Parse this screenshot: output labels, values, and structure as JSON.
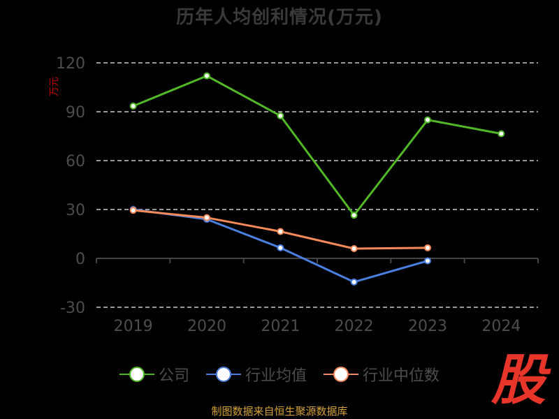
{
  "title": "历年人均创利情况(万元)",
  "source": "制图数据来自恒生聚源数据库",
  "logo_text": "股",
  "colors": {
    "background": "#000000",
    "company": "#52b828",
    "industry_avg": "#4a7fe0",
    "industry_median": "#f4895a",
    "grid": "#cccccc",
    "ylabel": "#c00000",
    "source": "#d6a23a",
    "logo": "#e8352a"
  },
  "chart_data": {
    "type": "line",
    "title": "历年人均创利情况(万元)",
    "ylabel": "万元",
    "xlabel": "",
    "categories": [
      "2019",
      "2020",
      "2021",
      "2022",
      "2023",
      "2024"
    ],
    "yticks": [
      120,
      90,
      60,
      30,
      0,
      -30
    ],
    "ylim": [
      -30,
      120
    ],
    "grid": true,
    "legend_position": "bottom",
    "series": [
      {
        "name": "公司",
        "color": "#52b828",
        "values": [
          93.5,
          112,
          87.5,
          26.5,
          85,
          76.5
        ]
      },
      {
        "name": "行业均值",
        "color": "#4a7fe0",
        "values": [
          30,
          24,
          6.5,
          -14.5,
          -1.5,
          null
        ]
      },
      {
        "name": "行业中位数",
        "color": "#f4895a",
        "values": [
          29.5,
          25,
          16.5,
          6,
          6.5,
          null
        ]
      }
    ]
  }
}
